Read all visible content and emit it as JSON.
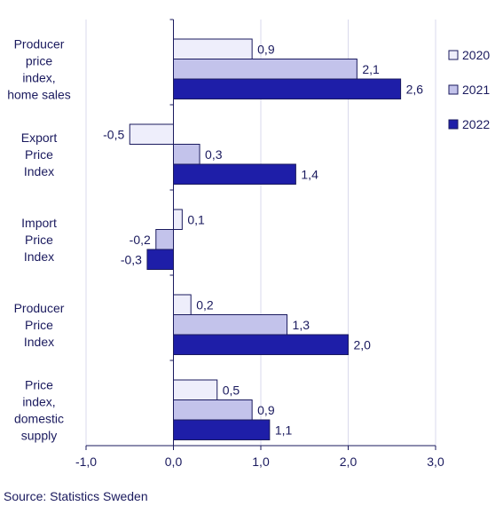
{
  "chart_data": {
    "type": "bar",
    "orientation": "horizontal",
    "categories": [
      [
        "Producer",
        "price",
        "index,",
        "home sales"
      ],
      [
        "Export",
        "Price",
        "Index"
      ],
      [
        "Import",
        "Price",
        "Index"
      ],
      [
        "Producer",
        "Price",
        "Index"
      ],
      [
        "Price",
        "index,",
        "domestic",
        "supply"
      ]
    ],
    "series": [
      {
        "name": "2020",
        "values": [
          0.9,
          -0.5,
          0.1,
          0.2,
          0.5
        ],
        "labels": [
          "0,9",
          "-0,5",
          "0,1",
          "0,2",
          "0,5"
        ],
        "color": "#eeeefb"
      },
      {
        "name": "2021",
        "values": [
          2.1,
          0.3,
          -0.2,
          1.3,
          0.9
        ],
        "labels": [
          "2,1",
          "0,3",
          "-0,2",
          "1,3",
          "0,9"
        ],
        "color": "#c3c3eb"
      },
      {
        "name": "2022",
        "values": [
          2.6,
          1.4,
          -0.3,
          2.0,
          1.1
        ],
        "labels": [
          "2,6",
          "1,4",
          "-0,3",
          "2,0",
          "1,1"
        ],
        "color": "#1e1ea8"
      }
    ],
    "xlim": [
      -1.0,
      3.0
    ],
    "xticks": [
      -1.0,
      0.0,
      1.0,
      2.0,
      3.0
    ],
    "xtick_labels": [
      "-1,0",
      "0,0",
      "1,0",
      "2,0",
      "3,0"
    ],
    "grid": "vertical",
    "legend_position": "right",
    "bar_border_color": "#1a1a5e"
  },
  "source": "Source: Statistics Sweden"
}
